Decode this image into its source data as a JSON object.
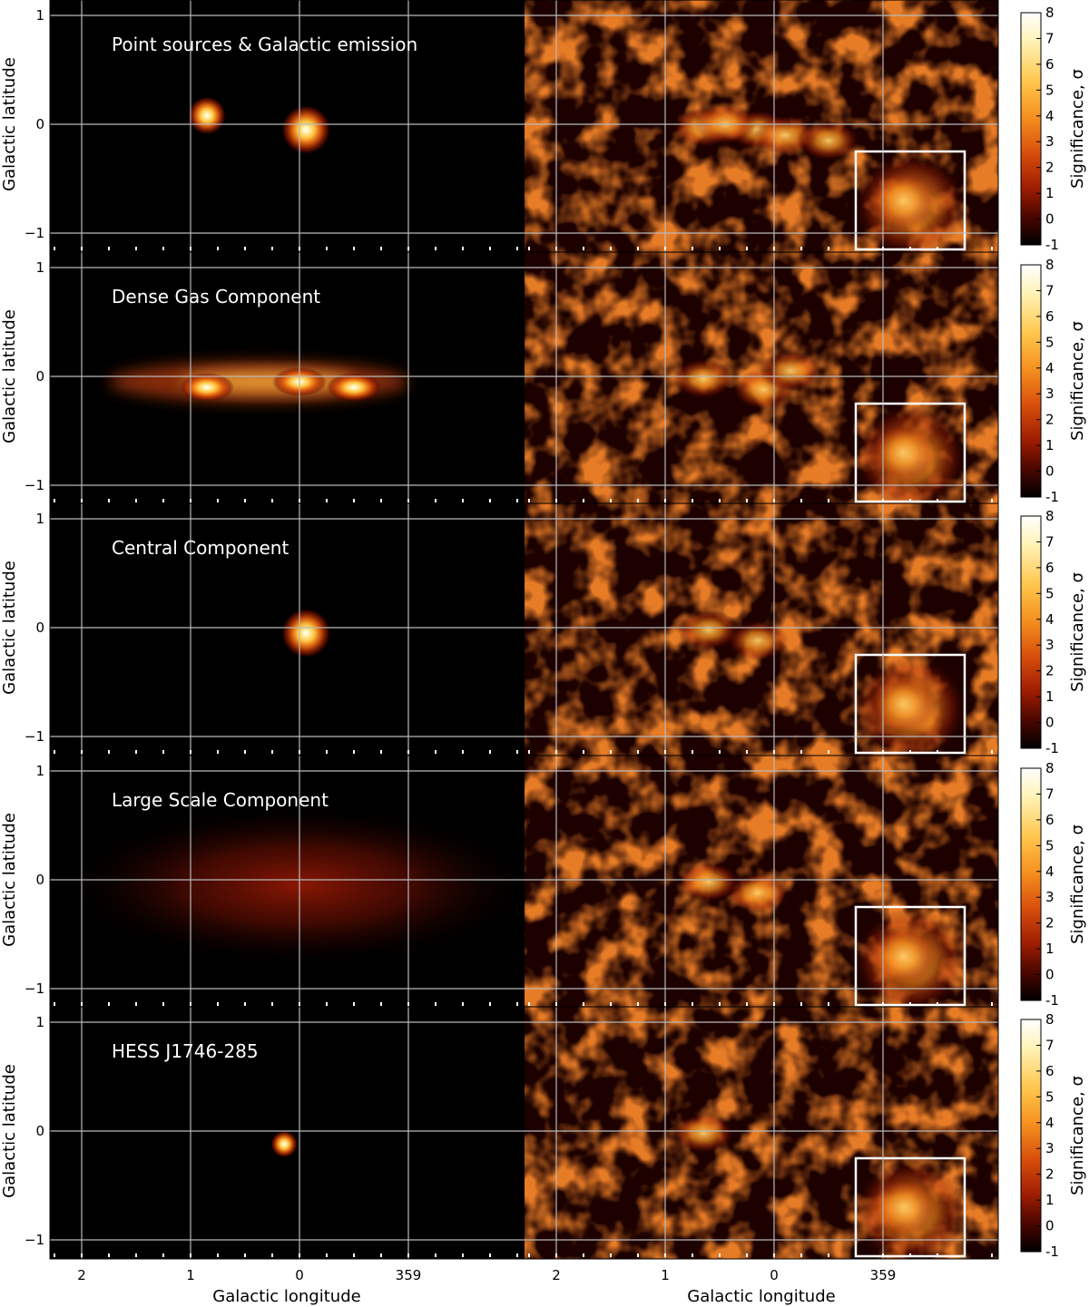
{
  "figure": {
    "x_axis_label": "Galactic longitude",
    "y_axis_label": "Galactic latitude",
    "colorbar_label": "Significance, σ"
  },
  "chart_data": {
    "type": "heatmap",
    "xlabel": "Galactic longitude",
    "ylabel": "Galactic latitude",
    "x_tick_labels": [
      "2",
      "1",
      "0",
      "359"
    ],
    "x_tick_values": [
      2,
      1,
      0,
      -1
    ],
    "y_tick_labels": [
      "1",
      "0",
      "−1"
    ],
    "y_tick_values": [
      1,
      0,
      -1
    ],
    "xlim": [
      2.3,
      -1.95
    ],
    "ylim": [
      -1.15,
      1.1
    ],
    "grid": true,
    "colorbar": {
      "label": "Significance, σ",
      "range": [
        -1,
        8
      ],
      "tick_labels": [
        "8",
        "7",
        "6",
        "5",
        "4",
        "3",
        "2",
        "1",
        "0",
        "-1"
      ],
      "tick_values": [
        8,
        7,
        6,
        5,
        4,
        3,
        2,
        1,
        0,
        -1
      ]
    },
    "region_box": {
      "l_range": [
        -0.75,
        -1.75
      ],
      "b_range": [
        -0.25,
        -1.15
      ]
    },
    "panels": [
      {
        "title": "Point sources & Galactic emission",
        "model_features": [
          {
            "kind": "point",
            "l": 0.85,
            "b": 0.08
          },
          {
            "kind": "point",
            "l": -0.06,
            "b": -0.05
          }
        ],
        "residual_hotspots": [
          {
            "l": 0.65,
            "b": -0.03
          },
          {
            "l": 0.15,
            "b": -0.05
          },
          {
            "l": -0.1,
            "b": -0.1
          },
          {
            "l": -0.5,
            "b": -0.15
          },
          {
            "l": 0.45,
            "b": 0.0
          }
        ]
      },
      {
        "title": "Dense Gas Component",
        "model_features": [
          {
            "kind": "ridge",
            "l_range": [
              1.75,
              -1.0
            ],
            "b": -0.05
          },
          {
            "kind": "clump",
            "l": 0.85,
            "b": -0.1
          },
          {
            "kind": "clump",
            "l": 0.0,
            "b": -0.05
          },
          {
            "kind": "clump",
            "l": -0.5,
            "b": -0.1
          }
        ],
        "residual_hotspots": [
          {
            "l": 0.65,
            "b": -0.02
          },
          {
            "l": 0.1,
            "b": -0.12
          },
          {
            "l": -0.15,
            "b": 0.05
          }
        ]
      },
      {
        "title": "Central Component",
        "model_features": [
          {
            "kind": "point",
            "l": -0.06,
            "b": -0.05
          }
        ],
        "residual_hotspots": [
          {
            "l": 0.6,
            "b": -0.02
          },
          {
            "l": 0.15,
            "b": -0.12
          }
        ]
      },
      {
        "title": "Large Scale Component",
        "model_features": [
          {
            "kind": "diffuse",
            "l": 0.0,
            "b": -0.05
          }
        ],
        "residual_hotspots": [
          {
            "l": 0.6,
            "b": -0.02
          },
          {
            "l": 0.15,
            "b": -0.12
          }
        ]
      },
      {
        "title": "HESS J1746-285",
        "model_features": [
          {
            "kind": "point",
            "l": 0.14,
            "b": -0.12
          }
        ],
        "residual_hotspots": [
          {
            "l": 0.65,
            "b": -0.02
          }
        ]
      }
    ]
  }
}
